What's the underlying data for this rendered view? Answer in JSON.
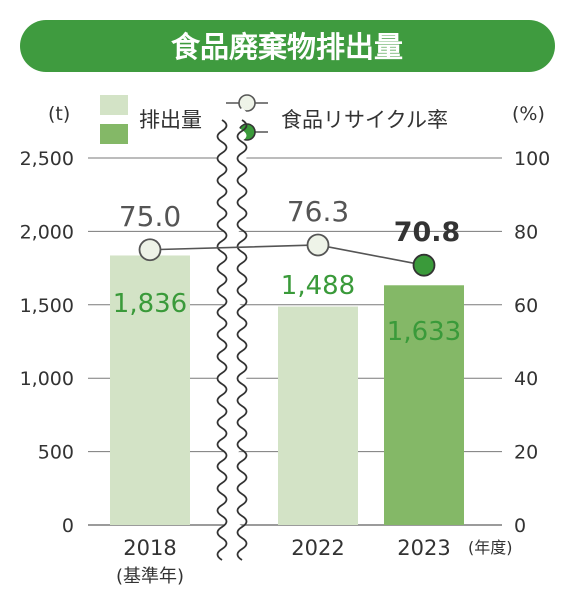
{
  "chart_data": {
    "type": "bar+line",
    "title": "食品廃棄物排出量",
    "y_left_unit": "(t)",
    "y_right_unit": "(%)",
    "x_unit": "(年度)",
    "y_left_ticks": [
      "2,500",
      "2,000",
      "1,500",
      "1,000",
      "500",
      "0"
    ],
    "y_left_tick_values": [
      2500,
      2000,
      1500,
      1000,
      500,
      0
    ],
    "y_right_ticks": [
      "100",
      "80",
      "60",
      "40",
      "20",
      "0"
    ],
    "y_right_tick_values": [
      100,
      80,
      60,
      40,
      20,
      0
    ],
    "y_left_lim": [
      0,
      2500
    ],
    "y_right_lim": [
      0,
      100
    ],
    "categories": [
      "2018",
      "2022",
      "2023"
    ],
    "category_sublabels": [
      "(基準年)",
      "",
      ""
    ],
    "axis_break_between": [
      "2018",
      "2022"
    ],
    "grid": true,
    "legend_position": "top",
    "series": [
      {
        "name": "排出量",
        "type": "bar",
        "axis": "left",
        "values": [
          1836,
          1488,
          1633
        ],
        "labels": [
          "1,836",
          "1,488",
          "1,633"
        ],
        "colors": [
          "#d3e3c6",
          "#d3e3c6",
          "#84b867"
        ]
      },
      {
        "name": "食品リサイクル率",
        "type": "line",
        "axis": "right",
        "values": [
          75.0,
          76.3,
          70.8
        ],
        "labels": [
          "75.0",
          "76.3",
          "70.8"
        ],
        "marker_colors": [
          "#eef3e8",
          "#eef3e8",
          "#3a9a3a"
        ]
      }
    ],
    "colors": {
      "banner": "#3f9b3f",
      "bar_light": "#d3e3c6",
      "bar_dark": "#84b867",
      "bar_label": "#3a9a3a",
      "line": "#555555",
      "grid": "#7a7a7a",
      "text": "#333333"
    }
  }
}
